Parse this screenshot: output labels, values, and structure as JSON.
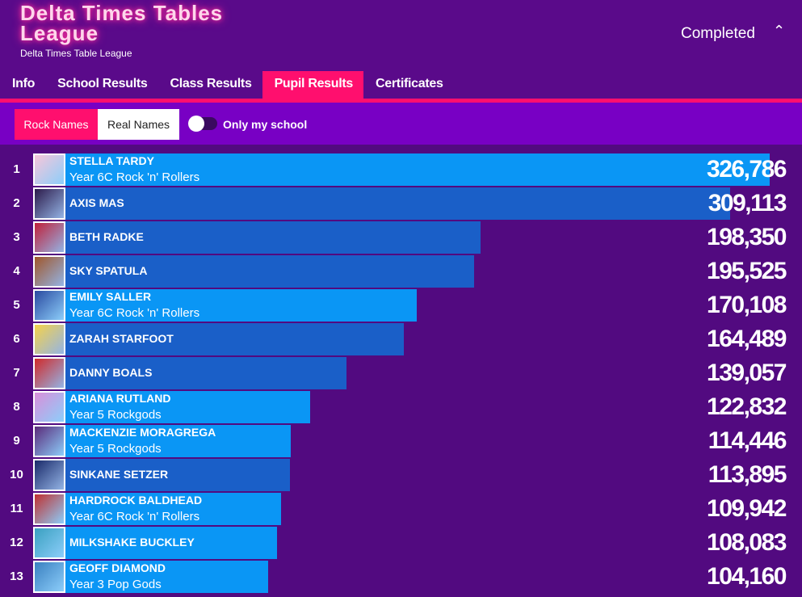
{
  "header": {
    "title": "Delta Times Tables League",
    "subtitle": "Delta Times Table League",
    "status": "Completed"
  },
  "tabs": {
    "items": [
      "Info",
      "School Results",
      "Class Results",
      "Pupil Results",
      "Certificates"
    ],
    "active": 3
  },
  "filters": {
    "options": [
      "Rock Names",
      "Real Names"
    ],
    "selected": 0,
    "toggle_label": "Only my school",
    "toggle_on": false
  },
  "rows": [
    {
      "rank": 1,
      "name": "STELLA TARDY",
      "class": "Year 6C Rock 'n' Rollers",
      "score": 326786,
      "score_label": "326,786",
      "highlight": true
    },
    {
      "rank": 2,
      "name": "AXIS MAS",
      "score": 309113,
      "score_label": "309,113",
      "highlight": false
    },
    {
      "rank": 3,
      "name": "BETH RADKE",
      "score": 198350,
      "score_label": "198,350",
      "highlight": false
    },
    {
      "rank": 4,
      "name": "SKY SPATULA",
      "score": 195525,
      "score_label": "195,525",
      "highlight": false
    },
    {
      "rank": 5,
      "name": "EMILY SALLER",
      "class": "Year 6C Rock 'n' Rollers",
      "score": 170108,
      "score_label": "170,108",
      "highlight": true
    },
    {
      "rank": 6,
      "name": "ZARAH STARFOOT",
      "score": 164489,
      "score_label": "164,489",
      "highlight": false
    },
    {
      "rank": 7,
      "name": "DANNY BOALS",
      "score": 139057,
      "score_label": "139,057",
      "highlight": false
    },
    {
      "rank": 8,
      "name": "ARIANA RUTLAND",
      "class": "Year 5 Rockgods",
      "score": 122832,
      "score_label": "122,832",
      "highlight": true
    },
    {
      "rank": 9,
      "name": "MACKENZIE MORAGREGA",
      "class": "Year 5 Rockgods",
      "score": 114446,
      "score_label": "114,446",
      "highlight": true
    },
    {
      "rank": 10,
      "name": "SINKANE SETZER",
      "score": 113895,
      "score_label": "113,895",
      "highlight": false
    },
    {
      "rank": 11,
      "name": "HARDROCK BALDHEAD",
      "class": "Year 6C Rock 'n' Rollers",
      "score": 109942,
      "score_label": "109,942",
      "highlight": true
    },
    {
      "rank": 12,
      "name": "MILKSHAKE BUCKLEY",
      "score": 108083,
      "score_label": "108,083",
      "highlight": true
    },
    {
      "rank": 13,
      "name": "GEOFF DIAMOND",
      "class": "Year 3 Pop Gods",
      "score": 104160,
      "score_label": "104,160",
      "highlight": true
    }
  ]
}
